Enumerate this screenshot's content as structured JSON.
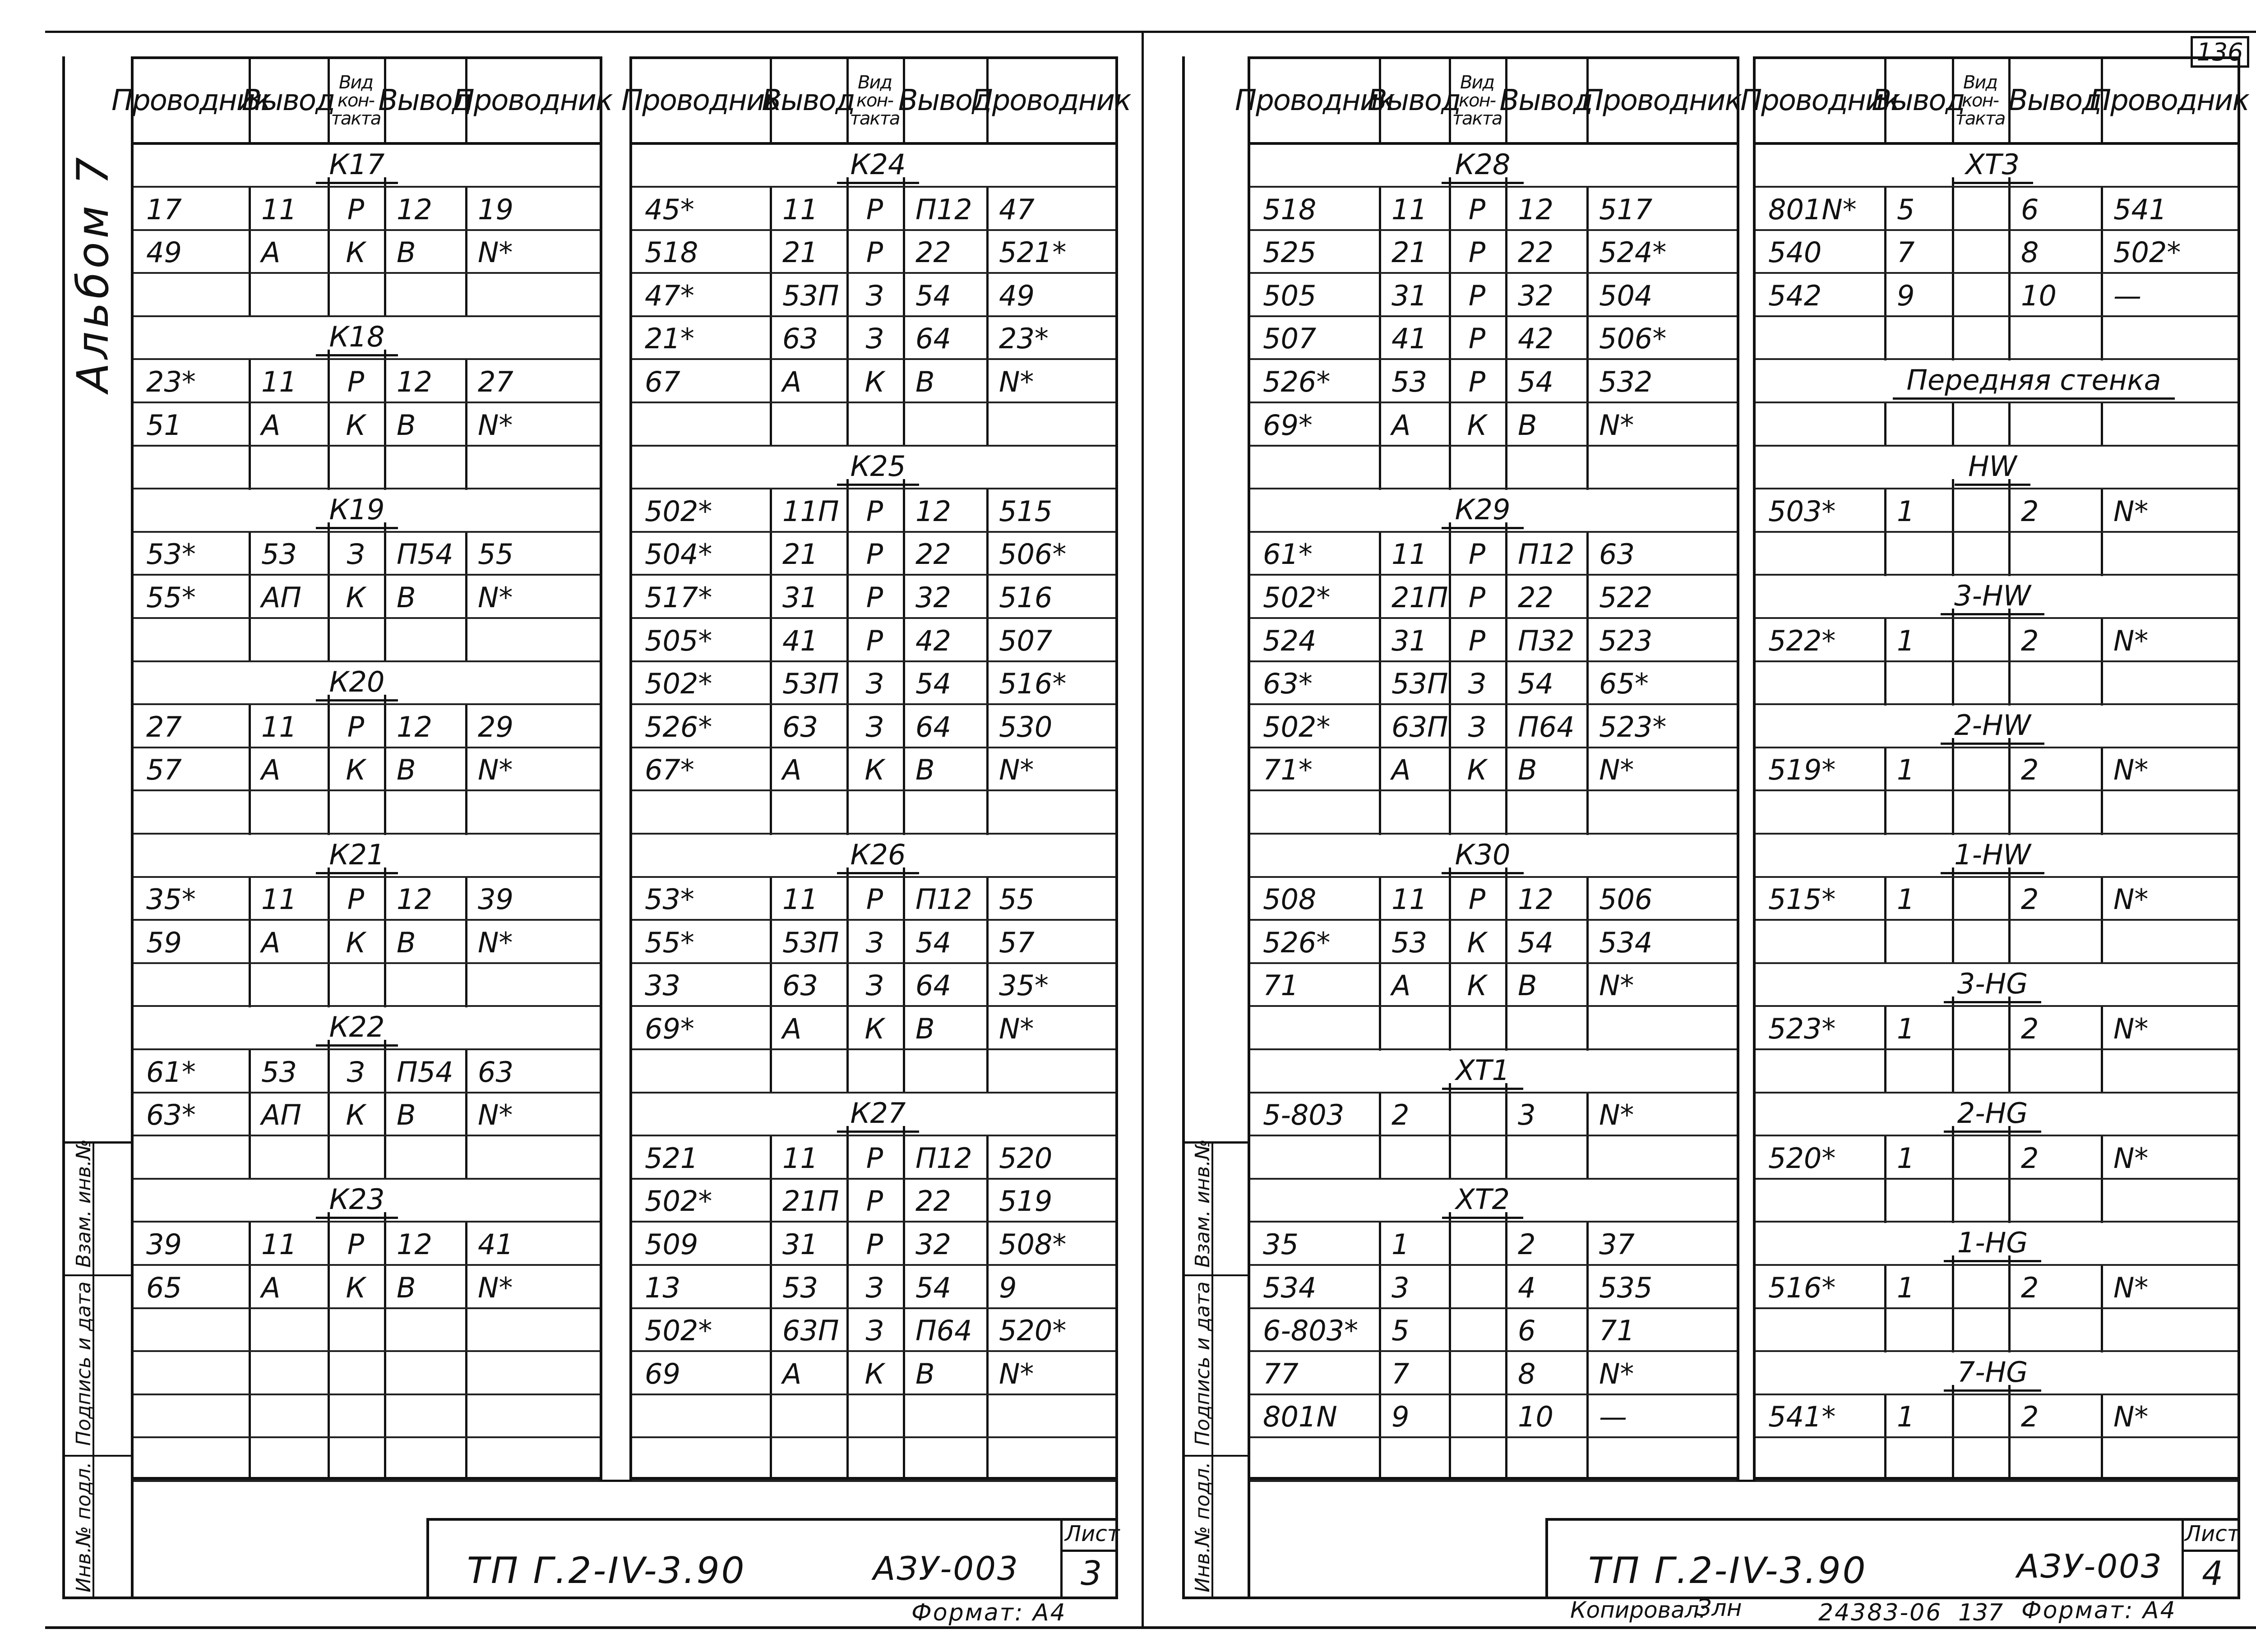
{
  "album_label": "Альбом 7",
  "sheet_number_top": "136",
  "headers": {
    "conductor": "Проводник",
    "terminal": "Вывод",
    "contact_type_lines": [
      "Вид",
      "кон-",
      "такта"
    ]
  },
  "side_strip": {
    "inv_podl": "Инв.№ подл.",
    "sign_date": "Подпись и дата",
    "vzam": "Взам. инв.№"
  },
  "stamp_left": {
    "doc": "ТП Г.2-IV-3.90",
    "code": "АЗУ-003",
    "list_label": "Лист",
    "list_no": "3",
    "format": "Формат: А4"
  },
  "stamp_right": {
    "doc": "ТП Г.2-IV-3.90",
    "code": "АЗУ-003",
    "list_label": "Лист",
    "list_no": "4",
    "copied": "Копировал:",
    "copied_sig": "Злн",
    "number": "24383-06",
    "sheet": "137",
    "format": "Формат: А4"
  },
  "tables": [
    {
      "id": "t1",
      "rows": [
        {
          "group": "К17"
        },
        {
          "cells": [
            "17",
            "11",
            "Р",
            "12",
            "19"
          ]
        },
        {
          "cells": [
            "49",
            "А",
            "К",
            "В",
            "N*"
          ]
        },
        {
          "cells": [
            "",
            "",
            "",
            "",
            ""
          ]
        },
        {
          "group": "К18"
        },
        {
          "cells": [
            "23*",
            "11",
            "Р",
            "12",
            "27"
          ]
        },
        {
          "cells": [
            "51",
            "А",
            "К",
            "В",
            "N*"
          ]
        },
        {
          "cells": [
            "",
            "",
            "",
            "",
            ""
          ]
        },
        {
          "group": "К19"
        },
        {
          "cells": [
            "53*",
            "53",
            "З",
            "П54",
            "55"
          ]
        },
        {
          "cells": [
            "55*",
            "АП",
            "К",
            "В",
            "N*"
          ]
        },
        {
          "cells": [
            "",
            "",
            "",
            "",
            ""
          ]
        },
        {
          "group": "К20"
        },
        {
          "cells": [
            "27",
            "11",
            "Р",
            "12",
            "29"
          ]
        },
        {
          "cells": [
            "57",
            "А",
            "К",
            "В",
            "N*"
          ]
        },
        {
          "cells": [
            "",
            "",
            "",
            "",
            ""
          ]
        },
        {
          "group": "К21"
        },
        {
          "cells": [
            "35*",
            "11",
            "Р",
            "12",
            "39"
          ]
        },
        {
          "cells": [
            "59",
            "А",
            "К",
            "В",
            "N*"
          ]
        },
        {
          "cells": [
            "",
            "",
            "",
            "",
            ""
          ]
        },
        {
          "group": "К22"
        },
        {
          "cells": [
            "61*",
            "53",
            "З",
            "П54",
            "63"
          ]
        },
        {
          "cells": [
            "63*",
            "АП",
            "К",
            "В",
            "N*"
          ]
        },
        {
          "cells": [
            "",
            "",
            "",
            "",
            ""
          ]
        },
        {
          "group": "К23"
        },
        {
          "cells": [
            "39",
            "11",
            "Р",
            "12",
            "41"
          ]
        },
        {
          "cells": [
            "65",
            "А",
            "К",
            "В",
            "N*"
          ]
        },
        {
          "cells": [
            "",
            "",
            "",
            "",
            ""
          ]
        },
        {
          "cells": [
            "",
            "",
            "",
            "",
            ""
          ]
        },
        {
          "cells": [
            "",
            "",
            "",
            "",
            ""
          ]
        },
        {
          "cells": [
            "",
            "",
            "",
            "",
            ""
          ]
        }
      ]
    },
    {
      "id": "t2",
      "rows": [
        {
          "group": "К24"
        },
        {
          "cells": [
            "45*",
            "11",
            "Р",
            "П12",
            "47"
          ]
        },
        {
          "cells": [
            "518",
            "21",
            "Р",
            "22",
            "521*"
          ]
        },
        {
          "cells": [
            "47*",
            "53П",
            "З",
            "54",
            "49"
          ]
        },
        {
          "cells": [
            "21*",
            "63",
            "З",
            "64",
            "23*"
          ]
        },
        {
          "cells": [
            "67",
            "А",
            "К",
            "В",
            "N*"
          ]
        },
        {
          "cells": [
            "",
            "",
            "",
            "",
            ""
          ]
        },
        {
          "group": "К25"
        },
        {
          "cells": [
            "502*",
            "11П",
            "Р",
            "12",
            "515"
          ]
        },
        {
          "cells": [
            "504*",
            "21",
            "Р",
            "22",
            "506*"
          ]
        },
        {
          "cells": [
            "517*",
            "31",
            "Р",
            "32",
            "516"
          ]
        },
        {
          "cells": [
            "505*",
            "41",
            "Р",
            "42",
            "507"
          ]
        },
        {
          "cells": [
            "502*",
            "53П",
            "З",
            "54",
            "516*"
          ]
        },
        {
          "cells": [
            "526*",
            "63",
            "З",
            "64",
            "530"
          ]
        },
        {
          "cells": [
            "67*",
            "А",
            "К",
            "В",
            "N*"
          ]
        },
        {
          "cells": [
            "",
            "",
            "",
            "",
            ""
          ]
        },
        {
          "group": "К26"
        },
        {
          "cells": [
            "53*",
            "11",
            "Р",
            "П12",
            "55"
          ]
        },
        {
          "cells": [
            "55*",
            "53П",
            "З",
            "54",
            "57"
          ]
        },
        {
          "cells": [
            "33",
            "63",
            "З",
            "64",
            "35*"
          ]
        },
        {
          "cells": [
            "69*",
            "А",
            "К",
            "В",
            "N*"
          ]
        },
        {
          "cells": [
            "",
            "",
            "",
            "",
            ""
          ]
        },
        {
          "group": "К27"
        },
        {
          "cells": [
            "521",
            "11",
            "Р",
            "П12",
            "520"
          ]
        },
        {
          "cells": [
            "502*",
            "21П",
            "Р",
            "22",
            "519"
          ]
        },
        {
          "cells": [
            "509",
            "31",
            "Р",
            "32",
            "508*"
          ]
        },
        {
          "cells": [
            "13",
            "53",
            "З",
            "54",
            "9"
          ]
        },
        {
          "cells": [
            "502*",
            "63П",
            "З",
            "П64",
            "520*"
          ]
        },
        {
          "cells": [
            "69",
            "А",
            "К",
            "В",
            "N*"
          ]
        },
        {
          "cells": [
            "",
            "",
            "",
            "",
            ""
          ]
        },
        {
          "cells": [
            "",
            "",
            "",
            "",
            ""
          ]
        }
      ]
    },
    {
      "id": "t3",
      "rows": [
        {
          "group": "К28"
        },
        {
          "cells": [
            "518",
            "11",
            "Р",
            "12",
            "517"
          ]
        },
        {
          "cells": [
            "525",
            "21",
            "Р",
            "22",
            "524*"
          ]
        },
        {
          "cells": [
            "505",
            "31",
            "Р",
            "32",
            "504"
          ]
        },
        {
          "cells": [
            "507",
            "41",
            "Р",
            "42",
            "506*"
          ]
        },
        {
          "cells": [
            "526*",
            "53",
            "Р",
            "54",
            "532"
          ]
        },
        {
          "cells": [
            "69*",
            "А",
            "К",
            "В",
            "N*"
          ]
        },
        {
          "cells": [
            "",
            "",
            "",
            "",
            ""
          ]
        },
        {
          "group": "К29"
        },
        {
          "cells": [
            "61*",
            "11",
            "Р",
            "П12",
            "63"
          ]
        },
        {
          "cells": [
            "502*",
            "21П",
            "Р",
            "22",
            "522"
          ]
        },
        {
          "cells": [
            "524",
            "31",
            "Р",
            "П32",
            "523"
          ]
        },
        {
          "cells": [
            "63*",
            "53П",
            "З",
            "54",
            "65*"
          ]
        },
        {
          "cells": [
            "502*",
            "63П",
            "З",
            "П64",
            "523*"
          ]
        },
        {
          "cells": [
            "71*",
            "А",
            "К",
            "В",
            "N*"
          ]
        },
        {
          "cells": [
            "",
            "",
            "",
            "",
            ""
          ]
        },
        {
          "group": "К30"
        },
        {
          "cells": [
            "508",
            "11",
            "Р",
            "12",
            "506"
          ]
        },
        {
          "cells": [
            "526*",
            "53",
            "К",
            "54",
            "534"
          ]
        },
        {
          "cells": [
            "71",
            "А",
            "К",
            "В",
            "N*"
          ]
        },
        {
          "cells": [
            "",
            "",
            "",
            "",
            ""
          ]
        },
        {
          "group": "ХТ1"
        },
        {
          "cells": [
            "5-803",
            "2",
            "",
            "3",
            "N*"
          ]
        },
        {
          "cells": [
            "",
            "",
            "",
            "",
            ""
          ]
        },
        {
          "group": "ХТ2"
        },
        {
          "cells": [
            "35",
            "1",
            "",
            "2",
            "37"
          ]
        },
        {
          "cells": [
            "534",
            "3",
            "",
            "4",
            "535"
          ]
        },
        {
          "cells": [
            "6-803*",
            "5",
            "",
            "6",
            "71"
          ]
        },
        {
          "cells": [
            "77",
            "7",
            "",
            "8",
            "N*"
          ]
        },
        {
          "cells": [
            "801N",
            "9",
            "",
            "10",
            "—"
          ]
        },
        {
          "cells": [
            "",
            "",
            "",
            "",
            ""
          ]
        }
      ]
    },
    {
      "id": "t4",
      "rows": [
        {
          "group": "ХТ3"
        },
        {
          "cells": [
            "801N*",
            "5",
            "",
            "6",
            "541"
          ]
        },
        {
          "cells": [
            "540",
            "7",
            "",
            "8",
            "502*"
          ]
        },
        {
          "cells": [
            "542",
            "9",
            "",
            "10",
            "—"
          ]
        },
        {
          "cells": [
            "",
            "",
            "",
            "",
            ""
          ]
        },
        {
          "group": "Передняя   стенка",
          "wide": true
        },
        {
          "cells": [
            "",
            "",
            "",
            "",
            ""
          ]
        },
        {
          "group": "HW"
        },
        {
          "cells": [
            "503*",
            "1",
            "",
            "2",
            "N*"
          ]
        },
        {
          "cells": [
            "",
            "",
            "",
            "",
            ""
          ]
        },
        {
          "group": "3-HW"
        },
        {
          "cells": [
            "522*",
            "1",
            "",
            "2",
            "N*"
          ]
        },
        {
          "cells": [
            "",
            "",
            "",
            "",
            ""
          ]
        },
        {
          "group": "2-HW"
        },
        {
          "cells": [
            "519*",
            "1",
            "",
            "2",
            "N*"
          ]
        },
        {
          "cells": [
            "",
            "",
            "",
            "",
            ""
          ]
        },
        {
          "group": "1-HW"
        },
        {
          "cells": [
            "515*",
            "1",
            "",
            "2",
            "N*"
          ]
        },
        {
          "cells": [
            "",
            "",
            "",
            "",
            ""
          ]
        },
        {
          "group": "3-HG"
        },
        {
          "cells": [
            "523*",
            "1",
            "",
            "2",
            "N*"
          ]
        },
        {
          "cells": [
            "",
            "",
            "",
            "",
            ""
          ]
        },
        {
          "group": "2-HG"
        },
        {
          "cells": [
            "520*",
            "1",
            "",
            "2",
            "N*"
          ]
        },
        {
          "cells": [
            "",
            "",
            "",
            "",
            ""
          ]
        },
        {
          "group": "1-HG"
        },
        {
          "cells": [
            "516*",
            "1",
            "",
            "2",
            "N*"
          ]
        },
        {
          "cells": [
            "",
            "",
            "",
            "",
            ""
          ]
        },
        {
          "group": "7-HG"
        },
        {
          "cells": [
            "541*",
            "1",
            "",
            "2",
            "N*"
          ]
        },
        {
          "cells": [
            "",
            "",
            "",
            "",
            ""
          ]
        }
      ]
    }
  ]
}
